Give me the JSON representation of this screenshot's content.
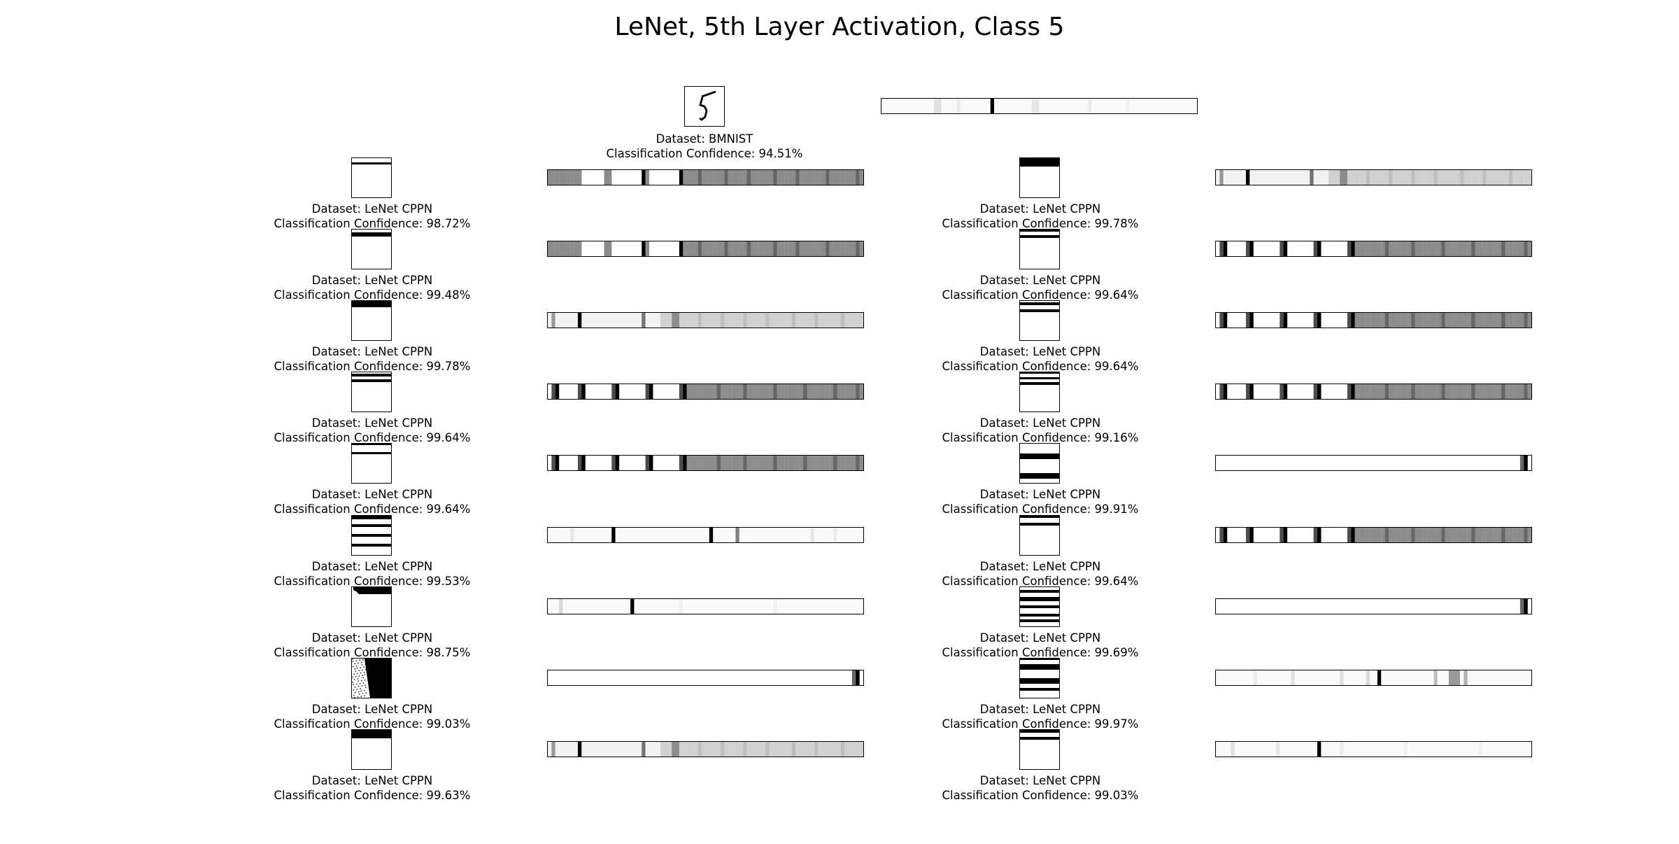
{
  "title": "LeNet, 5th Layer Activation, Class 5",
  "reference": {
    "dataset_line": "Dataset: BMNIST",
    "confidence_line": "Classification Confidence: 94.51%"
  },
  "columns": [
    {
      "samples": [
        {
          "dataset_line": "Dataset: LeNet CPPN",
          "confidence_line": "Classification Confidence: 98.72%"
        },
        {
          "dataset_line": "Dataset: LeNet CPPN",
          "confidence_line": "Classification Confidence: 99.48%"
        },
        {
          "dataset_line": "Dataset: LeNet CPPN",
          "confidence_line": "Classification Confidence: 99.78%"
        },
        {
          "dataset_line": "Dataset: LeNet CPPN",
          "confidence_line": "Classification Confidence: 99.64%"
        },
        {
          "dataset_line": "Dataset: LeNet CPPN",
          "confidence_line": "Classification Confidence: 99.64%"
        },
        {
          "dataset_line": "Dataset: LeNet CPPN",
          "confidence_line": "Classification Confidence: 99.53%"
        },
        {
          "dataset_line": "Dataset: LeNet CPPN",
          "confidence_line": "Classification Confidence: 98.75%"
        },
        {
          "dataset_line": "Dataset: LeNet CPPN",
          "confidence_line": "Classification Confidence: 99.03%"
        },
        {
          "dataset_line": "Dataset: LeNet CPPN",
          "confidence_line": "Classification Confidence: 99.63%"
        }
      ]
    },
    {
      "samples": [
        {
          "dataset_line": "Dataset: LeNet CPPN",
          "confidence_line": "Classification Confidence: 99.78%"
        },
        {
          "dataset_line": "Dataset: LeNet CPPN",
          "confidence_line": "Classification Confidence: 99.64%"
        },
        {
          "dataset_line": "Dataset: LeNet CPPN",
          "confidence_line": "Classification Confidence: 99.64%"
        },
        {
          "dataset_line": "Dataset: LeNet CPPN",
          "confidence_line": "Classification Confidence: 99.16%"
        },
        {
          "dataset_line": "Dataset: LeNet CPPN",
          "confidence_line": "Classification Confidence: 99.91%"
        },
        {
          "dataset_line": "Dataset: LeNet CPPN",
          "confidence_line": "Classification Confidence: 99.64%"
        },
        {
          "dataset_line": "Dataset: LeNet CPPN",
          "confidence_line": "Classification Confidence: 99.69%"
        },
        {
          "dataset_line": "Dataset: LeNet CPPN",
          "confidence_line": "Classification Confidence: 99.97%"
        },
        {
          "dataset_line": "Dataset: LeNet CPPN",
          "confidence_line": "Classification Confidence: 99.03%"
        }
      ]
    }
  ]
}
